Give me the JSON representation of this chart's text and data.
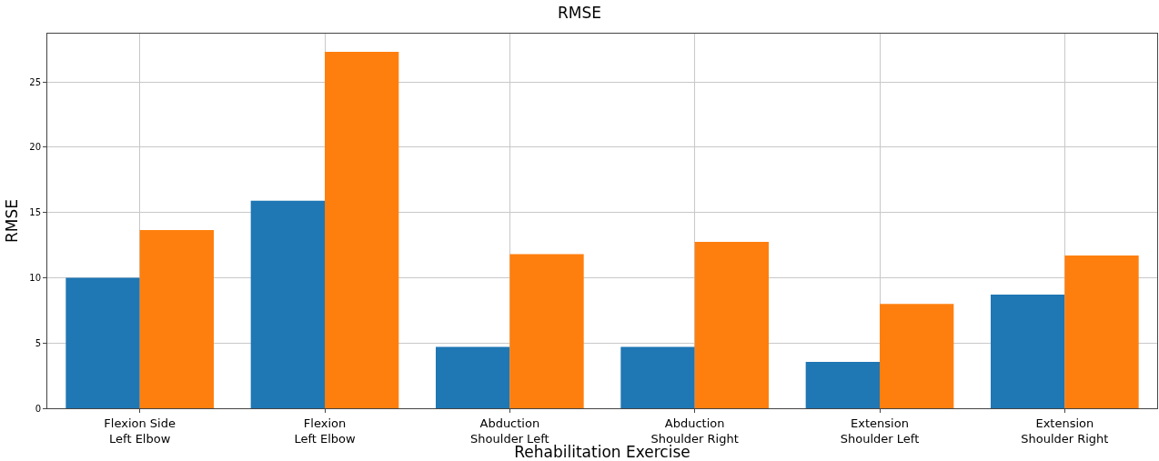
{
  "chart_data": {
    "type": "bar",
    "title": "RMSE",
    "xlabel": "Rehabilitation Exercise",
    "ylabel": "RMSE",
    "categories": [
      "Flexion Side\nLeft Elbow",
      "Flexion\nLeft Elbow",
      "Abduction\nShoulder Left",
      "Abduction\nShoulder Right",
      "Extension\nShoulder Left",
      "Extension\nShoulder Right"
    ],
    "series": [
      {
        "color": "#1f77b4",
        "values": [
          10.0,
          15.9,
          4.7,
          4.7,
          3.55,
          8.7
        ]
      },
      {
        "color": "#ff7f0e",
        "values": [
          13.65,
          27.3,
          11.8,
          12.75,
          8.0,
          11.7
        ]
      }
    ],
    "ylim": [
      0,
      28.7
    ],
    "yticks": [
      0,
      5,
      10,
      15,
      20,
      25
    ],
    "grid": true
  }
}
